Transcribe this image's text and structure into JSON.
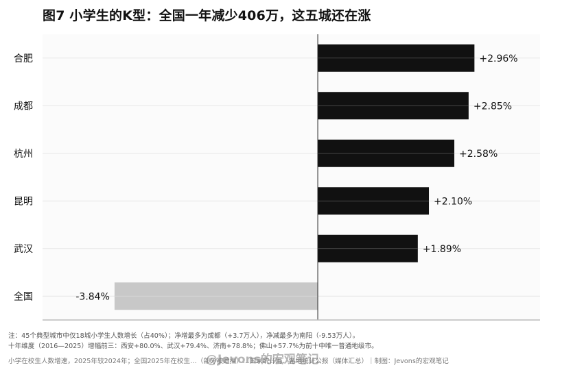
{
  "title": "图7  小学生的K型：全国一年减少406万，这五城还在涨",
  "chart_data": {
    "type": "bar",
    "orientation": "horizontal",
    "categories": [
      "合肥",
      "成都",
      "杭州",
      "昆明",
      "武汉",
      "全国"
    ],
    "values": [
      2.96,
      2.85,
      2.58,
      2.1,
      1.89,
      -3.84
    ],
    "labels": [
      "+2.96%",
      "+2.85%",
      "+2.58%",
      "+2.10%",
      "+1.89%",
      "-3.84%"
    ],
    "xlim": [
      -5.2,
      4.2
    ],
    "colors": {
      "positive": "#111111",
      "negative": "#c8c8c8"
    },
    "grid": true
  },
  "notes": [
    "注：45个典型城市中仅18城小学生人数增长（占40%）；净增最多为成都（+3.7万人），净减最多为南阳（-9.53万人）。",
    "十年维度（2016—2025）增幅前三：西安+80.0%、武汉+79.4%、济南+78.8%；佛山+57.7%为前十中唯一普通地级市。"
  ],
  "source": "小学在校生人数增速，2025年较2024年；全国2025年在校生…（部分被遮挡）…国家统计局、各地统计公报（媒体汇总）｜制图：Jevons的宏观笔记",
  "watermark": "@Jevons的宏观笔记"
}
